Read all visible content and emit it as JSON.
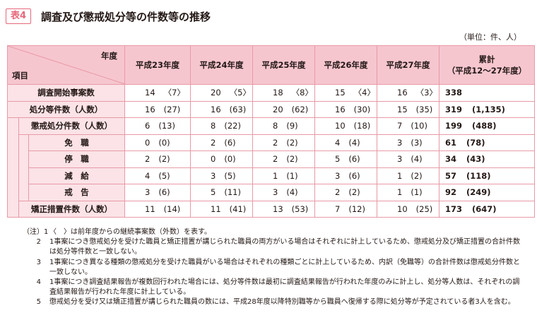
{
  "header": {
    "table_label": "表4",
    "title": "調査及び懲戒処分等の件数等の推移",
    "unit": "（単位：件、人）"
  },
  "table": {
    "corner_top": "年度",
    "corner_bottom": "項目",
    "columns": [
      "平成23年度",
      "平成24年度",
      "平成25年度",
      "平成26年度",
      "平成27年度"
    ],
    "total_header_line1": "累計",
    "total_header_line2": "（平成12〜27年度）",
    "rows": [
      {
        "label": "調査開始事案数",
        "cells": [
          [
            "14",
            "〈7〉"
          ],
          [
            "20",
            "〈5〉"
          ],
          [
            "18",
            "〈8〉"
          ],
          [
            "15",
            "〈4〉"
          ],
          [
            "16",
            "〈3〉"
          ]
        ],
        "total": [
          "338",
          ""
        ]
      },
      {
        "label": "処分等件数（人数）",
        "cells": [
          [
            "16",
            "(27)"
          ],
          [
            "16",
            "(63)"
          ],
          [
            "20",
            "(62)"
          ],
          [
            "16",
            "(30)"
          ],
          [
            "15",
            "(35)"
          ]
        ],
        "total": [
          "319",
          "(1,135)"
        ]
      },
      {
        "label": "懲戒処分件数（人数）",
        "cells": [
          [
            "6",
            "(13)"
          ],
          [
            "8",
            "(22)"
          ],
          [
            "8",
            "(9)"
          ],
          [
            "10",
            "(18)"
          ],
          [
            "7",
            "(10)"
          ]
        ],
        "total": [
          "199",
          "(488)"
        ]
      },
      {
        "label": "免　職",
        "cells": [
          [
            "0",
            "(0)"
          ],
          [
            "2",
            "(6)"
          ],
          [
            "2",
            "(2)"
          ],
          [
            "4",
            "(4)"
          ],
          [
            "3",
            "(3)"
          ]
        ],
        "total": [
          "61",
          "(78)"
        ]
      },
      {
        "label": "停　職",
        "cells": [
          [
            "2",
            "(2)"
          ],
          [
            "0",
            "(0)"
          ],
          [
            "2",
            "(2)"
          ],
          [
            "5",
            "(6)"
          ],
          [
            "3",
            "(4)"
          ]
        ],
        "total": [
          "34",
          "(43)"
        ]
      },
      {
        "label": "減　給",
        "cells": [
          [
            "4",
            "(5)"
          ],
          [
            "3",
            "(5)"
          ],
          [
            "1",
            "(1)"
          ],
          [
            "3",
            "(6)"
          ],
          [
            "1",
            "(2)"
          ]
        ],
        "total": [
          "57",
          "(118)"
        ]
      },
      {
        "label": "戒　告",
        "cells": [
          [
            "3",
            "(6)"
          ],
          [
            "5",
            "(11)"
          ],
          [
            "3",
            "(4)"
          ],
          [
            "2",
            "(2)"
          ],
          [
            "1",
            "(1)"
          ]
        ],
        "total": [
          "92",
          "(249)"
        ]
      },
      {
        "label": "矯正措置件数（人数）",
        "cells": [
          [
            "11",
            "(14)"
          ],
          [
            "11",
            "(41)"
          ],
          [
            "13",
            "(53)"
          ],
          [
            "7",
            "(12)"
          ],
          [
            "10",
            "(25)"
          ]
        ],
        "total": [
          "173",
          "(647)"
        ]
      }
    ]
  },
  "notes": [
    {
      "num": "（注）1",
      "text": "〈　〉は前年度からの継続事案数（外数）を表す。"
    },
    {
      "num": "2",
      "text": "1事案につき懲戒処分を受けた職員と矯正措置が講じられた職員の両方がいる場合はそれぞれに計上しているため、懲戒処分及び矯正措置の合計件数は処分等件数と一致しない。"
    },
    {
      "num": "3",
      "text": "1事案につき異なる種類の懲戒処分を受けた職員がいる場合はそれぞれの種類ごとに計上しているため、内訳（免職等）の合計件数は懲戒処分件数と一致しない。"
    },
    {
      "num": "4",
      "text": "1事案につき調査結果報告が複数回行われた場合には、処分等件数は最初に調査結果報告が行われた年度のみに計上し、処分等人数は、それぞれの調査結果報告が行われた年度に計上している。"
    },
    {
      "num": "5",
      "text": "懲戒処分を受け又は矯正措置が講じられた職員の数には、平成28年度以降特別職等から職員へ復帰する際に処分等が予定されている者3人を含む。"
    }
  ]
}
